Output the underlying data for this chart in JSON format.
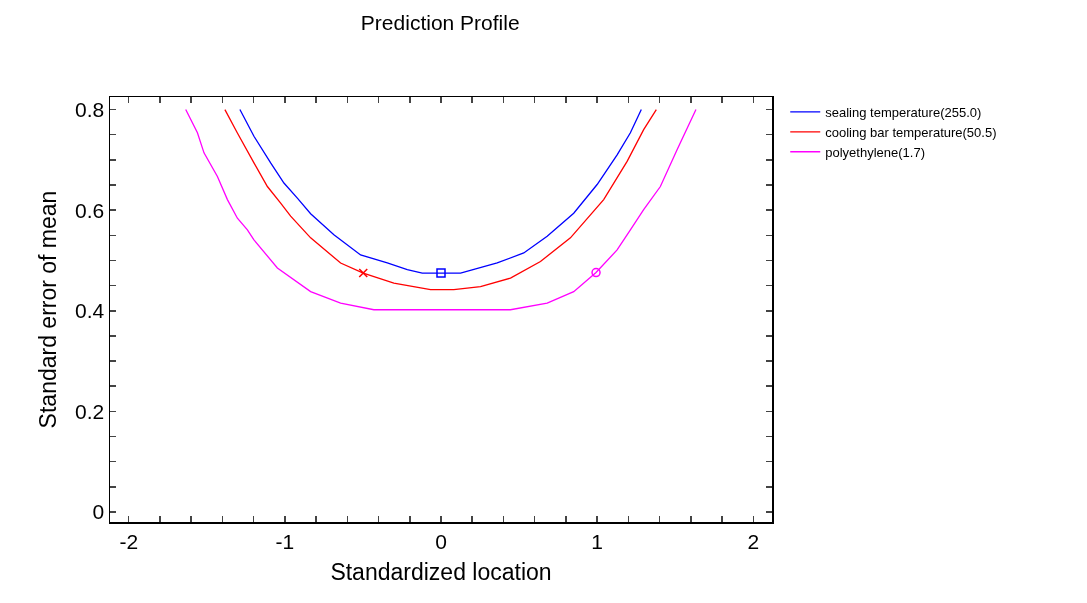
{
  "chart_data": {
    "type": "line",
    "title": "Prediction Profile",
    "xlabel": "Standardized location",
    "ylabel": "Standard error of mean",
    "xlim": [
      -2.12,
      2.12
    ],
    "xticks": [
      -2,
      {
        "value": -1.8,
        "label": null
      },
      {
        "value": -1.6,
        "label": null
      },
      {
        "value": -1.4,
        "label": null
      },
      {
        "value": -1.2,
        "label": null
      },
      -1,
      {
        "value": -0.8,
        "label": null
      },
      {
        "value": -0.6,
        "label": null
      },
      {
        "value": -0.4,
        "label": null
      },
      {
        "value": -0.2,
        "label": null
      },
      0,
      {
        "value": 0.2,
        "label": null
      },
      {
        "value": 0.4,
        "label": null
      },
      {
        "value": 0.6,
        "label": null
      },
      {
        "value": 0.8,
        "label": null
      },
      1,
      {
        "value": 1.2,
        "label": null
      },
      {
        "value": 1.4,
        "label": null
      },
      {
        "value": 1.6,
        "label": null
      },
      {
        "value": 1.8,
        "label": null
      },
      2
    ],
    "ylim": [
      -0.02,
      0.825
    ],
    "yticks": [
      0,
      {
        "value": 0.05,
        "label": null
      },
      {
        "value": 0.1,
        "label": null
      },
      {
        "value": 0.15,
        "label": null
      },
      0.2,
      {
        "value": 0.25,
        "label": null
      },
      {
        "value": 0.3,
        "label": null
      },
      {
        "value": 0.35,
        "label": null
      },
      0.4,
      {
        "value": 0.45,
        "label": null
      },
      {
        "value": 0.5,
        "label": null
      },
      {
        "value": 0.55,
        "label": null
      },
      0.6,
      {
        "value": 0.65,
        "label": null
      },
      {
        "value": 0.7,
        "label": null
      },
      {
        "value": 0.75,
        "label": null
      },
      0.8
    ],
    "grid": false,
    "legend": "top right",
    "marker": "none",
    "line_style": "solid",
    "series": [
      {
        "name": "sealing temperature(255.0)",
        "color": "#0000ff",
        "x": [
          -1.288,
          -1.198,
          -1.091,
          -1.006,
          -0.92,
          -0.835,
          -0.686,
          -0.515,
          -0.344,
          -0.216,
          -0.12,
          0,
          0.125,
          0.36,
          0.53,
          0.68,
          0.85,
          1.0,
          1.128,
          1.213,
          1.283
        ],
        "values": [
          0.8,
          0.747,
          0.694,
          0.654,
          0.624,
          0.593,
          0.551,
          0.511,
          0.495,
          0.482,
          0.475,
          0.475,
          0.475,
          0.495,
          0.515,
          0.548,
          0.594,
          0.651,
          0.71,
          0.754,
          0.8
        ]
      },
      {
        "name": "cooling bar temperature(50.5)",
        "color": "#ff0000",
        "x": [
          -1.384,
          -1.305,
          -1.198,
          -1.112,
          -1.027,
          -0.963,
          -0.835,
          -0.643,
          -0.498,
          -0.302,
          -0.067,
          0.082,
          0.253,
          0.445,
          0.637,
          0.829,
          1.042,
          1.192,
          1.298,
          1.379
        ],
        "values": [
          0.8,
          0.754,
          0.694,
          0.647,
          0.614,
          0.588,
          0.545,
          0.495,
          0.475,
          0.455,
          0.442,
          0.442,
          0.448,
          0.465,
          0.498,
          0.545,
          0.621,
          0.697,
          0.76,
          0.8
        ]
      },
      {
        "name": "polyethylene(1.7)",
        "color": "#ff00ff",
        "x": [
          -1.635,
          -1.56,
          -1.518,
          -1.432,
          -1.368,
          -1.304,
          -1.24,
          -1.198,
          -1.048,
          -0.835,
          -0.643,
          -0.43,
          0.445,
          0.68,
          0.85,
          0.993,
          1.128,
          1.213,
          1.298,
          1.405,
          1.512,
          1.633
        ],
        "values": [
          0.8,
          0.754,
          0.714,
          0.667,
          0.621,
          0.584,
          0.561,
          0.541,
          0.485,
          0.438,
          0.415,
          0.402,
          0.402,
          0.415,
          0.438,
          0.476,
          0.521,
          0.561,
          0.601,
          0.647,
          0.72,
          0.8
        ]
      },
      {
        "type": "scatter",
        "marker": "square",
        "color": "#0000ff",
        "x": [
          0
        ],
        "values": [
          0.475
        ]
      },
      {
        "type": "scatter",
        "marker": "cross",
        "color": "#ff0000",
        "x": [
          -0.498
        ],
        "values": [
          0.475
        ]
      },
      {
        "type": "scatter",
        "marker": "circle",
        "color": "#ff00ff",
        "x": [
          0.993
        ],
        "values": [
          0.476
        ]
      }
    ]
  }
}
